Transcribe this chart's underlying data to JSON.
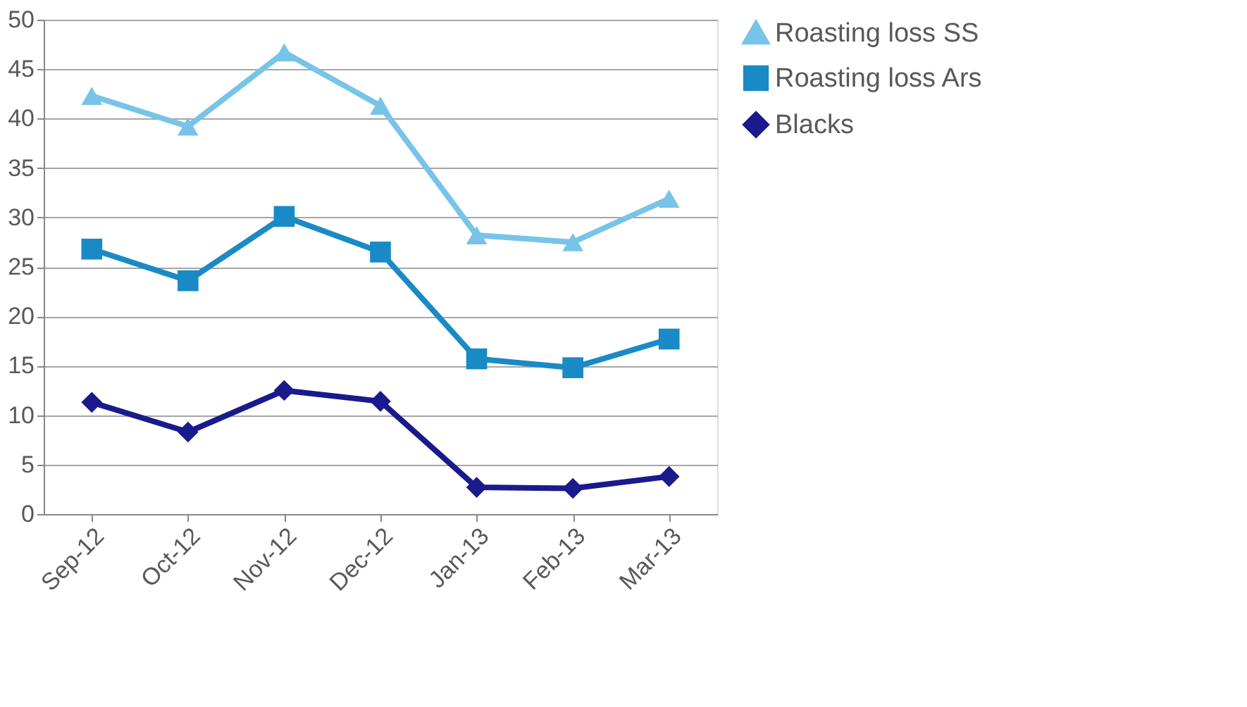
{
  "chart_data": {
    "type": "line",
    "categories": [
      "Sep-12",
      "Oct-12",
      "Nov-12",
      "Dec-12",
      "Jan-13",
      "Feb-13",
      "Mar-13"
    ],
    "series": [
      {
        "name": "Roasting loss SS",
        "color": "#77c4e8",
        "marker": "triangle",
        "values": [
          42.3,
          39.2,
          46.7,
          41.3,
          28.2,
          27.5,
          31.9
        ]
      },
      {
        "name": "Roasting loss Ars",
        "color": "#1a8ac6",
        "marker": "square",
        "values": [
          26.8,
          23.6,
          30.1,
          26.5,
          15.7,
          14.8,
          17.7
        ]
      },
      {
        "name": "Blacks",
        "color": "#1a1a8c",
        "marker": "diamond",
        "values": [
          11.3,
          8.3,
          12.5,
          11.4,
          2.7,
          2.6,
          3.8
        ]
      }
    ],
    "ylim": [
      0,
      50
    ],
    "yticks": [
      0,
      5,
      10,
      15,
      20,
      25,
      30,
      35,
      40,
      45,
      50
    ],
    "grid": "y",
    "legend": "right"
  }
}
